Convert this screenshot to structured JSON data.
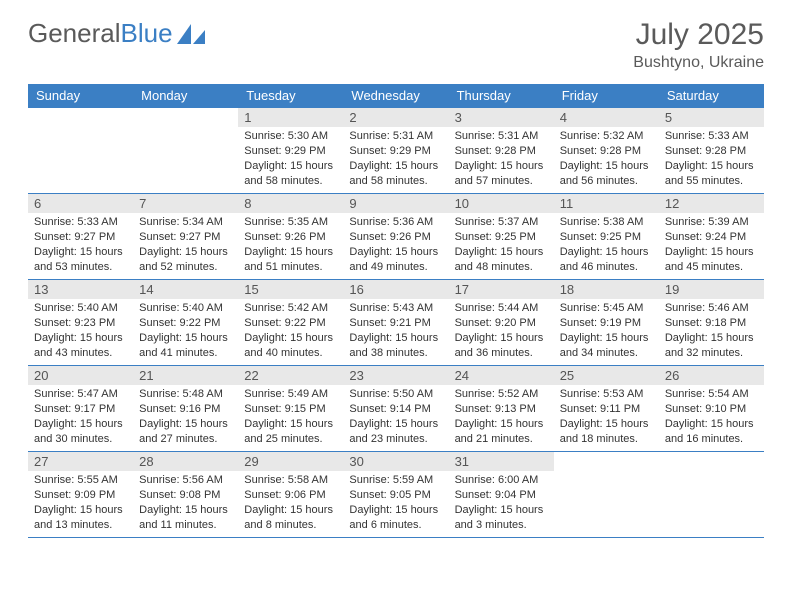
{
  "brand": {
    "part1": "General",
    "part2": "Blue"
  },
  "title": "July 2025",
  "location": "Bushtyno, Ukraine",
  "colors": {
    "header_bg": "#3b7fc4",
    "header_text": "#ffffff",
    "daynum_bg": "#e8e8e8",
    "border": "#3b7fc4",
    "text": "#333333",
    "title_text": "#5a5a5a"
  },
  "weekdays": [
    "Sunday",
    "Monday",
    "Tuesday",
    "Wednesday",
    "Thursday",
    "Friday",
    "Saturday"
  ],
  "weeks": [
    [
      null,
      null,
      {
        "d": "1",
        "sr": "5:30 AM",
        "ss": "9:29 PM",
        "dl": "15 hours and 58 minutes."
      },
      {
        "d": "2",
        "sr": "5:31 AM",
        "ss": "9:29 PM",
        "dl": "15 hours and 58 minutes."
      },
      {
        "d": "3",
        "sr": "5:31 AM",
        "ss": "9:28 PM",
        "dl": "15 hours and 57 minutes."
      },
      {
        "d": "4",
        "sr": "5:32 AM",
        "ss": "9:28 PM",
        "dl": "15 hours and 56 minutes."
      },
      {
        "d": "5",
        "sr": "5:33 AM",
        "ss": "9:28 PM",
        "dl": "15 hours and 55 minutes."
      }
    ],
    [
      {
        "d": "6",
        "sr": "5:33 AM",
        "ss": "9:27 PM",
        "dl": "15 hours and 53 minutes."
      },
      {
        "d": "7",
        "sr": "5:34 AM",
        "ss": "9:27 PM",
        "dl": "15 hours and 52 minutes."
      },
      {
        "d": "8",
        "sr": "5:35 AM",
        "ss": "9:26 PM",
        "dl": "15 hours and 51 minutes."
      },
      {
        "d": "9",
        "sr": "5:36 AM",
        "ss": "9:26 PM",
        "dl": "15 hours and 49 minutes."
      },
      {
        "d": "10",
        "sr": "5:37 AM",
        "ss": "9:25 PM",
        "dl": "15 hours and 48 minutes."
      },
      {
        "d": "11",
        "sr": "5:38 AM",
        "ss": "9:25 PM",
        "dl": "15 hours and 46 minutes."
      },
      {
        "d": "12",
        "sr": "5:39 AM",
        "ss": "9:24 PM",
        "dl": "15 hours and 45 minutes."
      }
    ],
    [
      {
        "d": "13",
        "sr": "5:40 AM",
        "ss": "9:23 PM",
        "dl": "15 hours and 43 minutes."
      },
      {
        "d": "14",
        "sr": "5:40 AM",
        "ss": "9:22 PM",
        "dl": "15 hours and 41 minutes."
      },
      {
        "d": "15",
        "sr": "5:42 AM",
        "ss": "9:22 PM",
        "dl": "15 hours and 40 minutes."
      },
      {
        "d": "16",
        "sr": "5:43 AM",
        "ss": "9:21 PM",
        "dl": "15 hours and 38 minutes."
      },
      {
        "d": "17",
        "sr": "5:44 AM",
        "ss": "9:20 PM",
        "dl": "15 hours and 36 minutes."
      },
      {
        "d": "18",
        "sr": "5:45 AM",
        "ss": "9:19 PM",
        "dl": "15 hours and 34 minutes."
      },
      {
        "d": "19",
        "sr": "5:46 AM",
        "ss": "9:18 PM",
        "dl": "15 hours and 32 minutes."
      }
    ],
    [
      {
        "d": "20",
        "sr": "5:47 AM",
        "ss": "9:17 PM",
        "dl": "15 hours and 30 minutes."
      },
      {
        "d": "21",
        "sr": "5:48 AM",
        "ss": "9:16 PM",
        "dl": "15 hours and 27 minutes."
      },
      {
        "d": "22",
        "sr": "5:49 AM",
        "ss": "9:15 PM",
        "dl": "15 hours and 25 minutes."
      },
      {
        "d": "23",
        "sr": "5:50 AM",
        "ss": "9:14 PM",
        "dl": "15 hours and 23 minutes."
      },
      {
        "d": "24",
        "sr": "5:52 AM",
        "ss": "9:13 PM",
        "dl": "15 hours and 21 minutes."
      },
      {
        "d": "25",
        "sr": "5:53 AM",
        "ss": "9:11 PM",
        "dl": "15 hours and 18 minutes."
      },
      {
        "d": "26",
        "sr": "5:54 AM",
        "ss": "9:10 PM",
        "dl": "15 hours and 16 minutes."
      }
    ],
    [
      {
        "d": "27",
        "sr": "5:55 AM",
        "ss": "9:09 PM",
        "dl": "15 hours and 13 minutes."
      },
      {
        "d": "28",
        "sr": "5:56 AM",
        "ss": "9:08 PM",
        "dl": "15 hours and 11 minutes."
      },
      {
        "d": "29",
        "sr": "5:58 AM",
        "ss": "9:06 PM",
        "dl": "15 hours and 8 minutes."
      },
      {
        "d": "30",
        "sr": "5:59 AM",
        "ss": "9:05 PM",
        "dl": "15 hours and 6 minutes."
      },
      {
        "d": "31",
        "sr": "6:00 AM",
        "ss": "9:04 PM",
        "dl": "15 hours and 3 minutes."
      },
      null,
      null
    ]
  ],
  "labels": {
    "sunrise": "Sunrise:",
    "sunset": "Sunset:",
    "daylight": "Daylight:"
  }
}
